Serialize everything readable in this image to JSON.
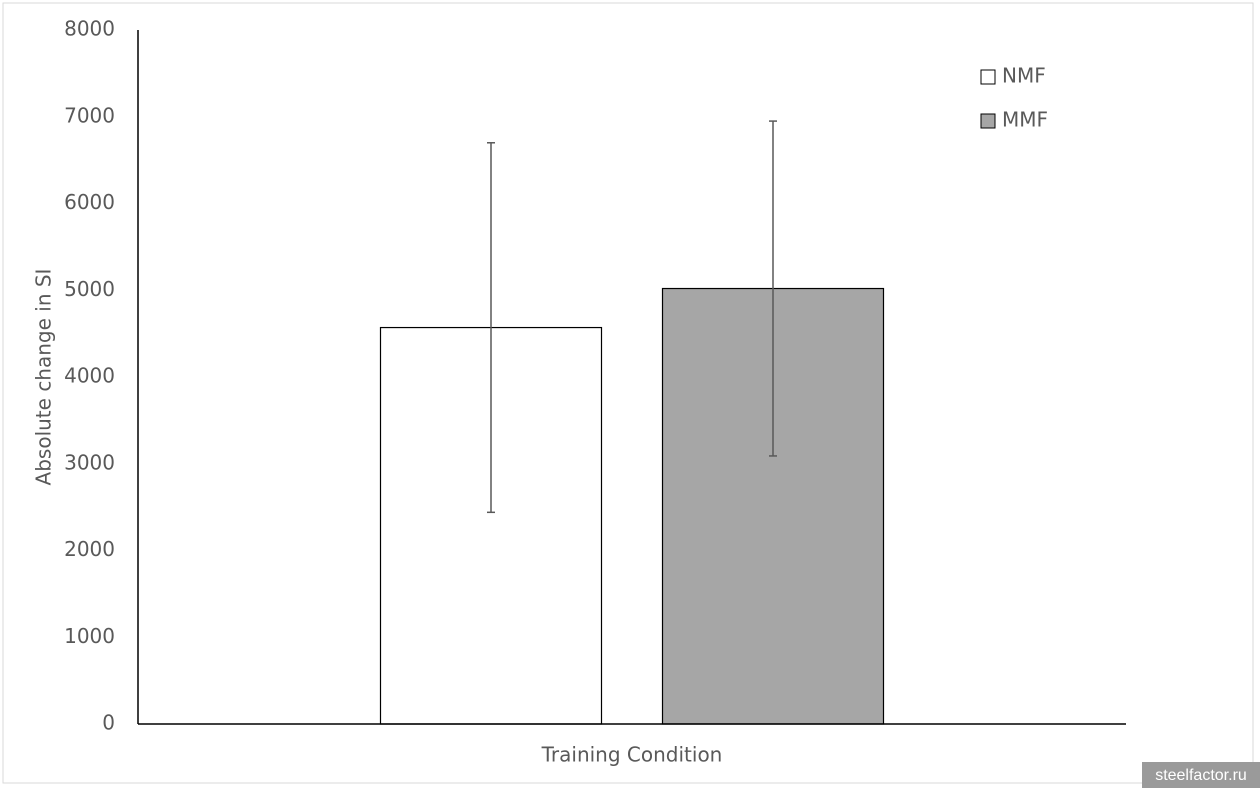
{
  "chart_data": {
    "type": "bar",
    "y_label": "Absolute change in SI",
    "x_label": "Training Condition",
    "categories": [
      null
    ],
    "series": [
      {
        "name": "NMF",
        "color": "#ffffff",
        "values": [
          4570
        ],
        "errors": [
          2130
        ]
      },
      {
        "name": "MMF",
        "color": "#a6a6a6",
        "values": [
          5020
        ],
        "errors": [
          1930
        ]
      }
    ],
    "ylim": [
      0,
      8000
    ],
    "yticks": [
      0,
      1000,
      2000,
      3000,
      4000,
      5000,
      6000,
      7000,
      8000
    ],
    "grid": false,
    "legend": "top-right"
  },
  "watermark": "steelfactor.ru"
}
